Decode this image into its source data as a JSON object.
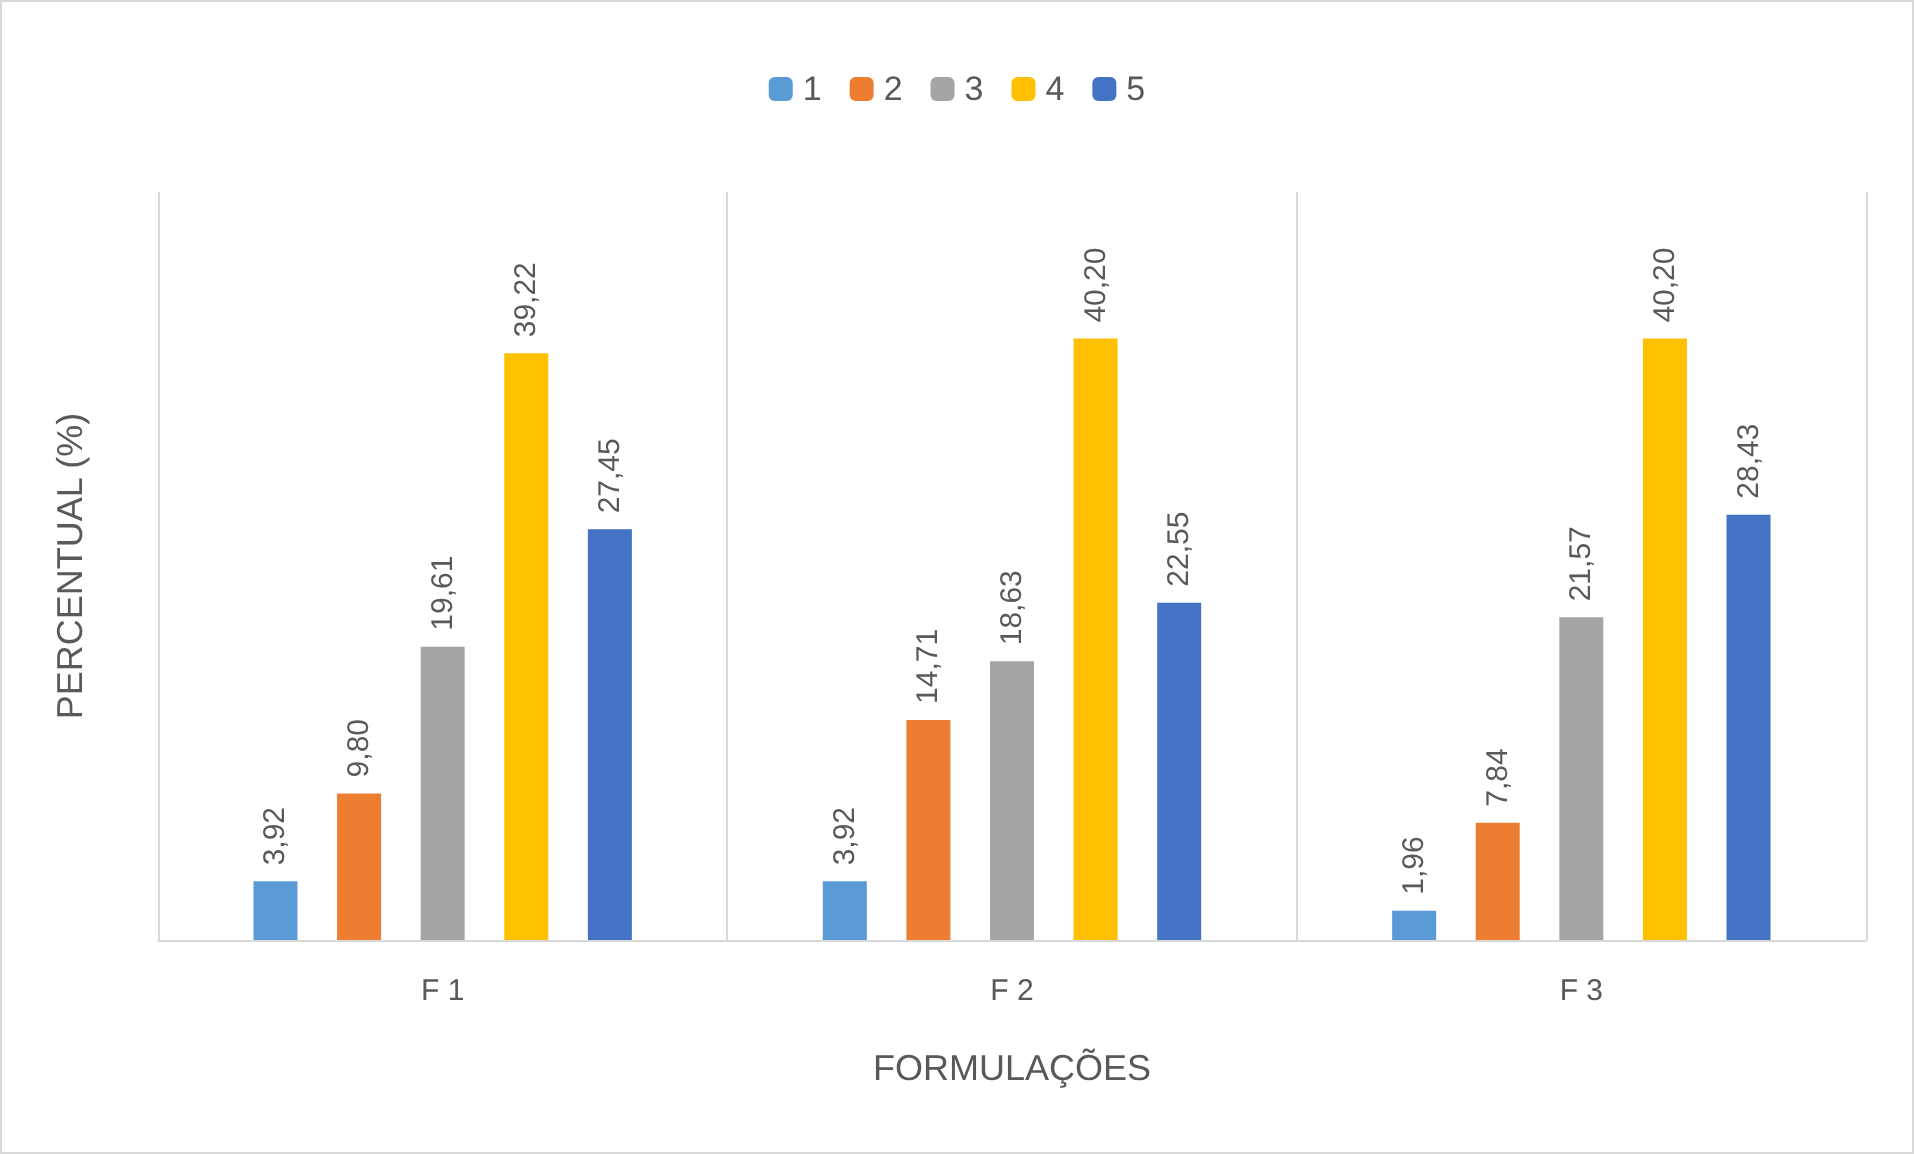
{
  "chart_data": {
    "type": "bar",
    "xlabel": "FORMULAÇÕES",
    "ylabel": "PERCENTUAL (%)",
    "categories": [
      "F 1",
      "F 2",
      "F 3"
    ],
    "series": [
      {
        "name": "1",
        "color": "#5b9bd5",
        "values": [
          3.92,
          3.92,
          1.96
        ],
        "value_labels": [
          "3,92",
          "3,92",
          "1,96"
        ]
      },
      {
        "name": "2",
        "color": "#ed7d31",
        "values": [
          9.8,
          14.71,
          7.84
        ],
        "value_labels": [
          "9,80",
          "14,71",
          "7,84"
        ]
      },
      {
        "name": "3",
        "color": "#a5a5a5",
        "values": [
          19.61,
          18.63,
          21.57
        ],
        "value_labels": [
          "19,61",
          "18,63",
          "21,57"
        ]
      },
      {
        "name": "4",
        "color": "#ffc000",
        "values": [
          39.22,
          40.2,
          40.2
        ],
        "value_labels": [
          "39,22",
          "40,20",
          "40,20"
        ]
      },
      {
        "name": "5",
        "color": "#4472c4",
        "values": [
          27.45,
          22.55,
          28.43
        ],
        "value_labels": [
          "27,45",
          "22,55",
          "28,43"
        ]
      }
    ],
    "grid": "x",
    "legend": "top",
    "tick_labels": "x"
  }
}
